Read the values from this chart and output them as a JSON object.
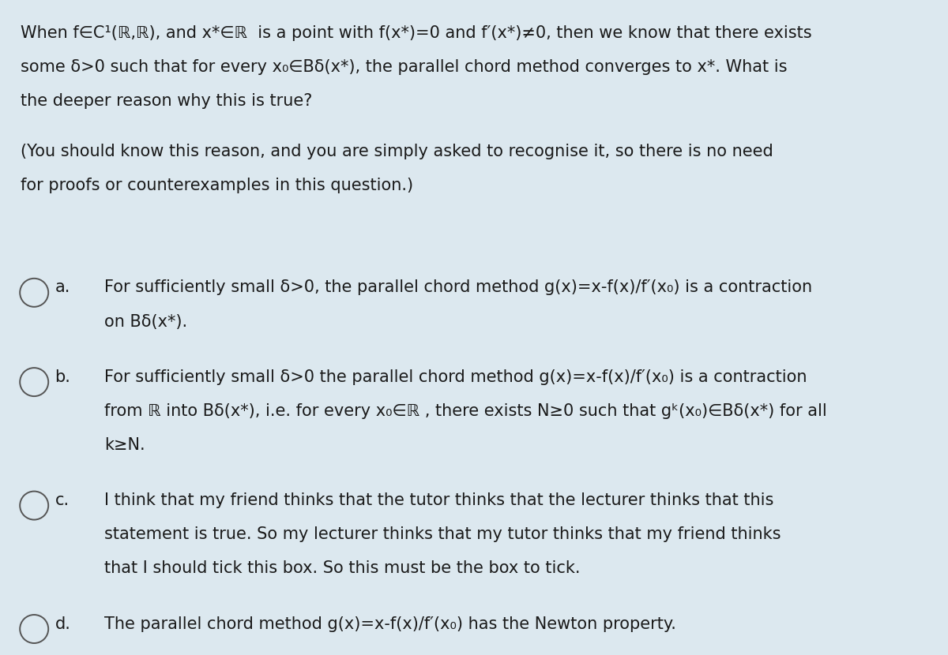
{
  "bg_color": "#dce8ef",
  "text_color": "#1a1a1a",
  "font_size": 15.0,
  "fig_width": 12.0,
  "fig_height": 8.3,
  "question_text": [
    "When f∈C¹(ℝ,ℝ), and x*∈ℝ  is a point with f(x*)=0 and f′(x*)≠0, then we know that there exists",
    "some δ>0 such that for every x₀∈Bδ(x*), the parallel chord method converges to x*. What is",
    "the deeper reason why this is true?"
  ],
  "sub_text": [
    "(You should know this reason, and you are simply asked to recognise it, so there is no need",
    "for proofs or counterexamples in this question.)"
  ],
  "options": [
    {
      "label": "a.",
      "lines": [
        "For sufficiently small δ>0, the parallel chord method g(x)=x-f(x)/f′(x₀) is a contraction",
        "on Bδ(x*)."
      ]
    },
    {
      "label": "b.",
      "lines": [
        "For sufficiently small δ>0 the parallel chord method g(x)=x-f(x)/f′(x₀) is a contraction",
        "from ℝ into Bδ(x*), i.e. for every x₀∈ℝ , there exists N≥0 such that gᵏ(x₀)∈Bδ(x*) for all",
        "k≥N."
      ]
    },
    {
      "label": "c.",
      "lines": [
        "I think that my friend thinks that the tutor thinks that the lecturer thinks that this",
        "statement is true. So my lecturer thinks that my tutor thinks that my friend thinks",
        "that I should tick this box. So this must be the box to tick."
      ]
    },
    {
      "label": "d.",
      "lines": [
        "The parallel chord method g(x)=x-f(x)/f′(x₀) has the Newton property."
      ]
    }
  ]
}
